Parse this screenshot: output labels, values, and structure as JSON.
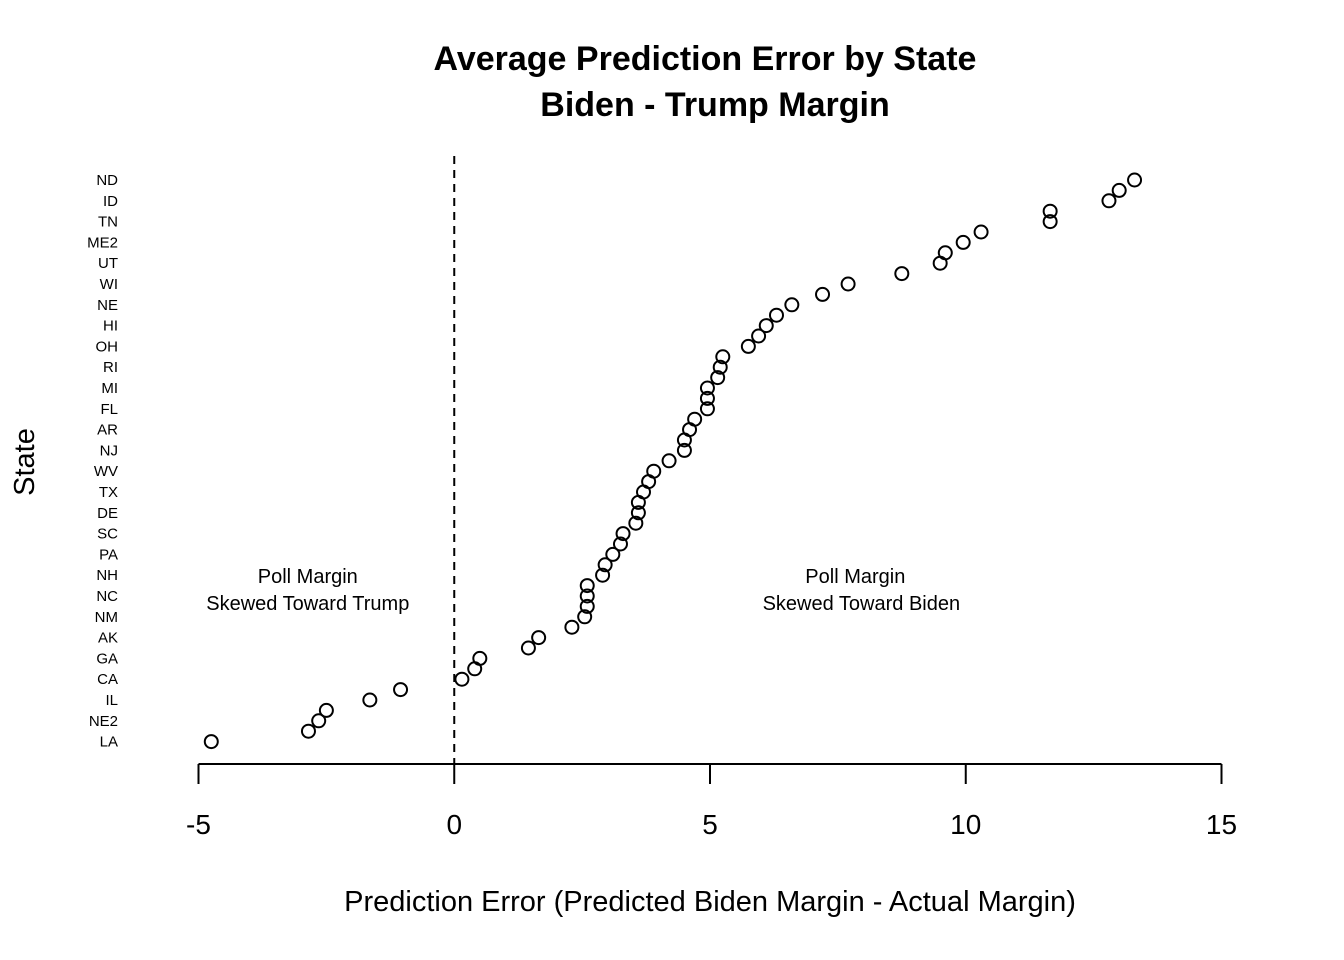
{
  "chart_data": {
    "type": "scatter",
    "title": [
      "Average Prediction Error by State",
      "Biden - Trump Margin"
    ],
    "xlabel": "Prediction Error (Predicted Biden Margin - Actual Margin)",
    "ylabel": "State",
    "xlim": [
      -5,
      15
    ],
    "xticks": [
      -5,
      0,
      5,
      10,
      15
    ],
    "xtick_labels": [
      "-5",
      "0",
      "5",
      "10",
      "15"
    ],
    "reference_line": {
      "x": 0,
      "style": "dashed"
    },
    "grid": false,
    "y_tick_labels": [
      "ND",
      "ID",
      "TN",
      "ME2",
      "UT",
      "WI",
      "NE",
      "HI",
      "OH",
      "RI",
      "MI",
      "FL",
      "AR",
      "NJ",
      "WV",
      "TX",
      "DE",
      "SC",
      "PA",
      "NH",
      "NC",
      "NM",
      "AK",
      "GA",
      "CA",
      "IL",
      "NE2",
      "LA"
    ],
    "points_top_to_bottom": [
      13.3,
      13.0,
      12.8,
      11.65,
      11.65,
      10.3,
      9.95,
      9.6,
      9.5,
      8.75,
      7.7,
      7.2,
      6.6,
      6.3,
      6.1,
      5.95,
      5.75,
      5.25,
      5.2,
      5.15,
      4.95,
      4.95,
      4.95,
      4.7,
      4.6,
      4.5,
      4.5,
      4.2,
      3.9,
      3.8,
      3.7,
      3.6,
      3.6,
      3.55,
      3.3,
      3.25,
      3.1,
      2.95,
      2.9,
      2.6,
      2.6,
      2.6,
      2.55,
      2.3,
      1.65,
      1.45,
      0.5,
      0.4,
      0.15,
      -1.05,
      -1.65,
      -2.5,
      -2.65,
      -2.85,
      -4.75
    ],
    "annotations": [
      {
        "lines": [
          "Poll Margin",
          "Skewed Toward Trump"
        ],
        "x": -3,
        "y_row": 39.5
      },
      {
        "lines": [
          "Poll Margin",
          "Skewed Toward Biden"
        ],
        "x": 7.9,
        "y_row": 39.5
      }
    ]
  }
}
